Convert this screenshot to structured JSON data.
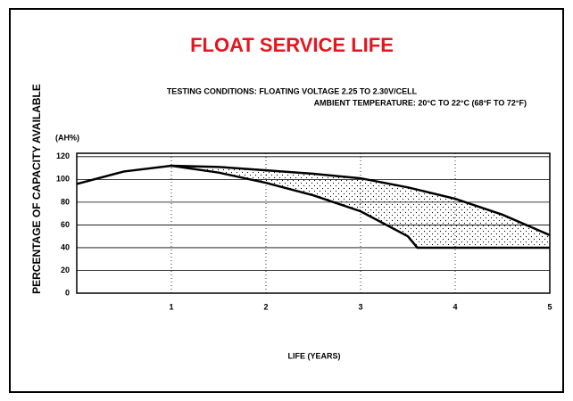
{
  "chart_data": {
    "type": "line",
    "title": "FLOAT SERVICE LIFE",
    "subtitle": [
      "TESTING CONDITIONS: FLOATING VOLTAGE 2.25 TO 2.30V/CELL",
      "AMBIENT TEMPERATURE: 20°C TO 22°C (68°F TO 72°F)"
    ],
    "y_unit": "(AH%)",
    "y_label": "PERCENTAGE OF CAPACITY AVAILABLE",
    "x_label": "LIFE (YEARS)",
    "x": [
      0,
      0.5,
      1,
      1.5,
      2,
      2.5,
      3,
      3.5,
      3.6,
      4,
      4.5,
      5
    ],
    "series": [
      {
        "color": "#000000",
        "values": [
          96,
          107,
          112,
          111,
          108,
          105,
          101,
          93,
          91,
          83,
          69,
          51
        ]
      },
      {
        "color": "#000000",
        "values": [
          null,
          null,
          112,
          106,
          97,
          86,
          72,
          50,
          40,
          40,
          40,
          40
        ]
      }
    ],
    "xlim": [
      0,
      5
    ],
    "xticks": [
      1,
      2,
      3,
      4,
      5
    ],
    "ylim": [
      0,
      123
    ],
    "yticks": [
      0,
      20,
      40,
      60,
      80,
      100,
      120
    ],
    "grid": true,
    "title_color": "#e8141e",
    "fill_between": true
  }
}
